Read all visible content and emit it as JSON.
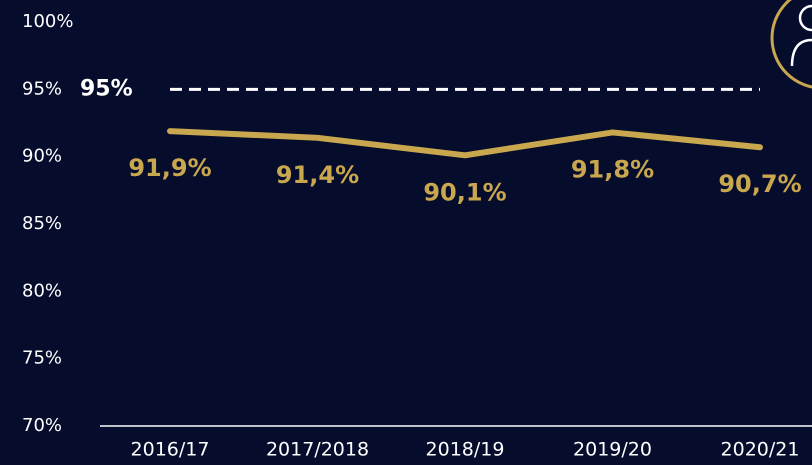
{
  "chart_data": {
    "type": "line",
    "categories": [
      "2016/17",
      "2017/2018",
      "2018/19",
      "2019/20",
      "2020/21"
    ],
    "values": [
      91.9,
      91.4,
      90.1,
      91.8,
      90.7
    ],
    "value_labels": [
      "91,9%",
      "91,4%",
      "90,1%",
      "91,8%",
      "90,7%"
    ],
    "color": "#c9a74e",
    "ylim": [
      70,
      100
    ],
    "yticks": [
      {
        "value": 70,
        "label": "70%"
      },
      {
        "value": 75,
        "label": "75%"
      },
      {
        "value": 80,
        "label": "80%"
      },
      {
        "value": 85,
        "label": "85%"
      },
      {
        "value": 90,
        "label": "90%"
      },
      {
        "value": 95,
        "label": "95%"
      },
      {
        "value": 100,
        "label": "100%"
      }
    ],
    "reference_line": {
      "value": 95,
      "label": "95%",
      "color": "#ffffff"
    }
  }
}
